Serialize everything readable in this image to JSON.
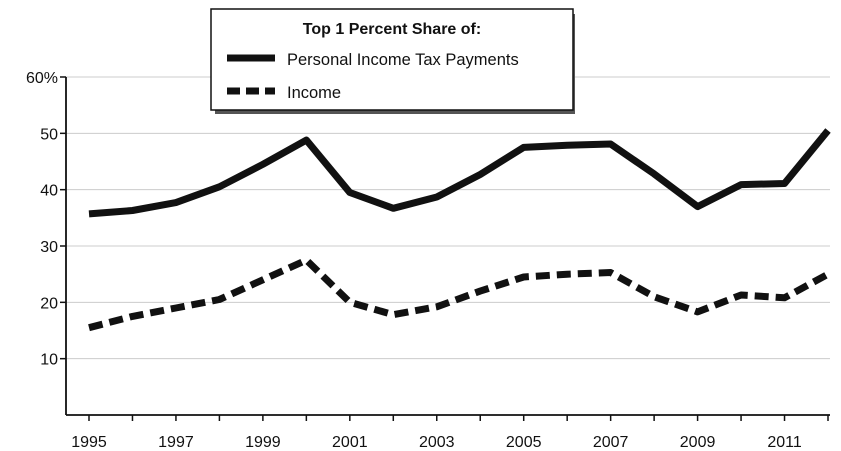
{
  "chart_data": {
    "type": "line",
    "title": "",
    "xlabel": "",
    "ylabel": "",
    "legend": {
      "title": "Top 1 Percent Share of:",
      "placement": "top-center",
      "entries": [
        "Personal Income Tax Payments",
        "Income"
      ]
    },
    "x": [
      1995,
      1996,
      1997,
      1998,
      1999,
      2000,
      2001,
      2002,
      2003,
      2004,
      2005,
      2006,
      2007,
      2008,
      2009,
      2010,
      2011,
      2012
    ],
    "x_tick_labels": [
      "1995",
      "1997",
      "1999",
      "2001",
      "2003",
      "2005",
      "2007",
      "2009",
      "2011"
    ],
    "y_tick_labels": [
      "10",
      "20",
      "30",
      "40",
      "50",
      "60%"
    ],
    "ylim": [
      0,
      60
    ],
    "xlim": [
      1995,
      2012
    ],
    "grid": "horizontal",
    "series": [
      {
        "name": "Personal Income Tax Payments",
        "style": "solid",
        "values": [
          35.7,
          36.3,
          37.7,
          40.5,
          44.5,
          48.8,
          39.5,
          36.7,
          38.7,
          42.7,
          47.5,
          47.9,
          48.1,
          42.8,
          37.0,
          40.9,
          41.1,
          50.5
        ]
      },
      {
        "name": "Income",
        "style": "dashed",
        "values": [
          15.5,
          17.5,
          19.0,
          20.5,
          24.0,
          27.5,
          20.0,
          17.8,
          19.2,
          22.0,
          24.5,
          25.0,
          25.3,
          21.0,
          18.3,
          21.3,
          20.8,
          25.0
        ]
      }
    ],
    "colors": {
      "line": "#111111",
      "grid": "#cccccc",
      "axis": "#111111"
    }
  }
}
